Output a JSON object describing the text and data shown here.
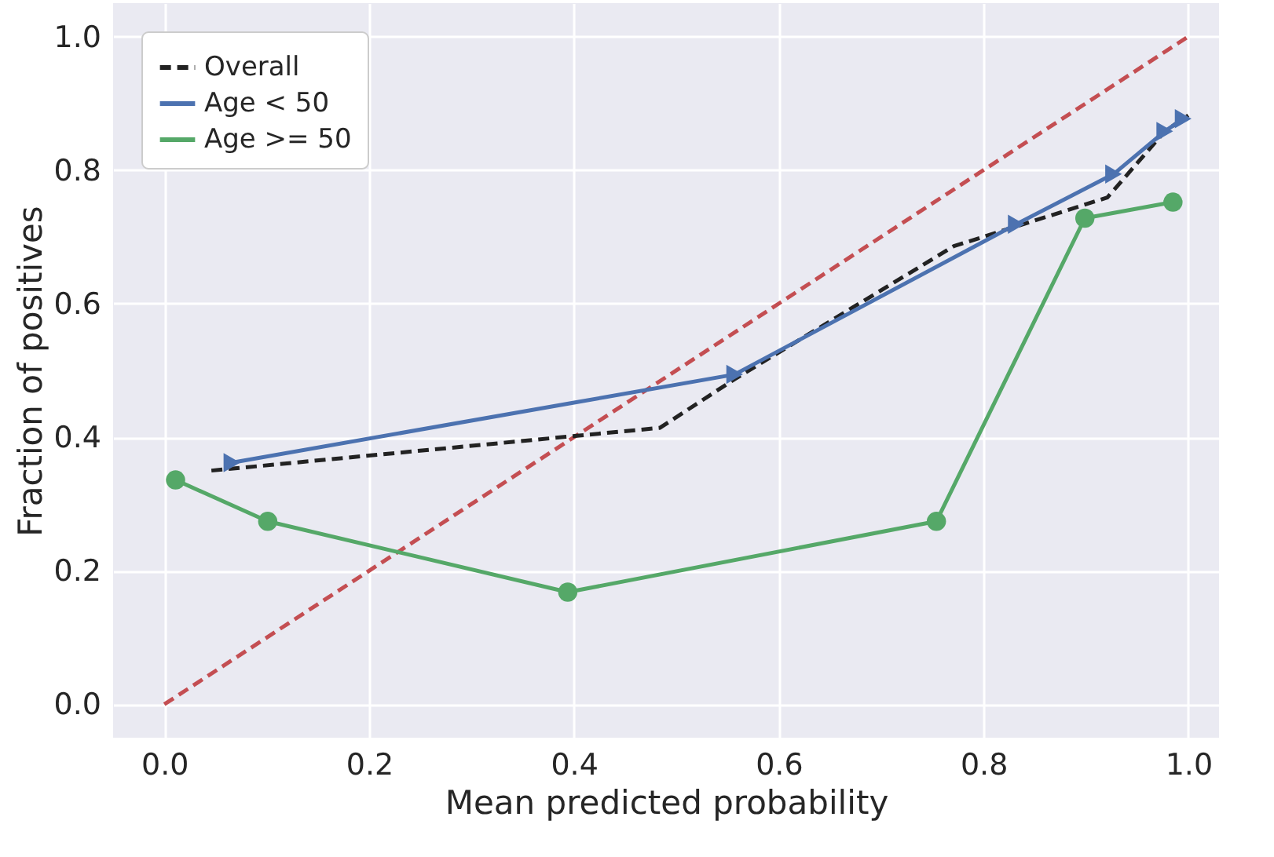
{
  "chart_data": {
    "type": "line",
    "xlabel": "Mean predicted probability",
    "ylabel": "Fraction of positives",
    "xlim": [
      -0.05,
      1.03
    ],
    "ylim": [
      -0.05,
      1.05
    ],
    "xticks": [
      {
        "value": 0,
        "label": "0.0"
      },
      {
        "value": 0.2,
        "label": "0.2"
      },
      {
        "value": 0.4,
        "label": "0.4"
      },
      {
        "value": 0.6,
        "label": "0.6"
      },
      {
        "value": 0.8,
        "label": "0.8"
      },
      {
        "value": 1,
        "label": "1.0"
      }
    ],
    "yticks": [
      {
        "value": 0,
        "label": "0.0"
      },
      {
        "value": 0.2,
        "label": "0.2"
      },
      {
        "value": 0.4,
        "label": "0.4"
      },
      {
        "value": 0.6,
        "label": "0.6"
      },
      {
        "value": 0.8,
        "label": "0.8"
      },
      {
        "value": 1,
        "label": "1.0"
      }
    ],
    "grid": true,
    "legend": "top left",
    "series": [
      {
        "color": "#c44e52",
        "line_style": "dashed",
        "marker": "none",
        "x": [
          0,
          1
        ],
        "values": [
          0,
          1
        ]
      },
      {
        "name": "Overall",
        "color": "#222222",
        "line_style": "dashed",
        "marker": "none",
        "x": [
          0.046,
          0.484,
          0.557,
          0.771,
          0.921,
          0.977,
          1.0
        ],
        "values": [
          0.35,
          0.414,
          0.487,
          0.686,
          0.759,
          0.858,
          0.882
        ]
      },
      {
        "name": "Age < 50",
        "color": "#4c72b0",
        "line_style": "solid",
        "marker": "triangle",
        "x": [
          0.066,
          0.557,
          0.832,
          0.927,
          0.977,
          0.995
        ],
        "values": [
          0.362,
          0.494,
          0.719,
          0.794,
          0.858,
          0.877
        ]
      },
      {
        "name": "Age >= 50",
        "color": "#55a868",
        "line_style": "solid",
        "marker": "circle",
        "x": [
          0.011,
          0.101,
          0.394,
          0.754,
          0.899,
          0.985
        ],
        "values": [
          0.336,
          0.274,
          0.168,
          0.274,
          0.728,
          0.752
        ]
      }
    ]
  }
}
